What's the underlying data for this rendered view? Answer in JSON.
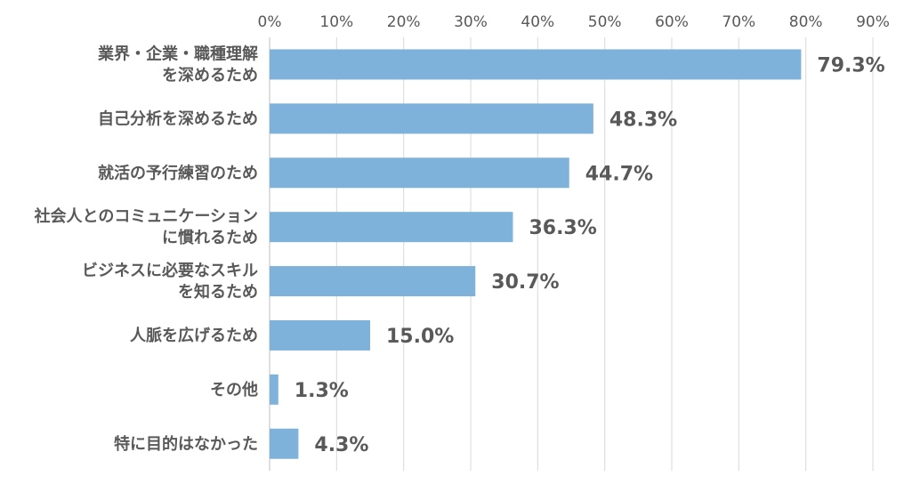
{
  "chart_data": {
    "type": "bar",
    "orientation": "horizontal",
    "categories": [
      "業界・企業・職種理解\nを深めるため",
      "自己分析を深めるため",
      "就活の予行練習のため",
      "社会人とのコミュニケーション\nに慣れるため",
      "ビジネスに必要なスキル\nを知るため",
      "人脈を広げるため",
      "その他",
      "特に目的はなかった"
    ],
    "values": [
      79.3,
      48.3,
      44.7,
      36.3,
      30.7,
      15.0,
      1.3,
      4.3
    ],
    "data_labels": [
      "79.3%",
      "48.3%",
      "44.7%",
      "36.3%",
      "30.7%",
      "15.0%",
      "1.3%",
      "4.3%"
    ],
    "xlim": [
      0,
      90
    ],
    "x_ticks": [
      "0%",
      "10%",
      "20%",
      "30%",
      "40%",
      "50%",
      "60%",
      "70%",
      "80%",
      "90%"
    ],
    "x_axis_position": "top",
    "grid": true,
    "title": "",
    "xlabel": "",
    "ylabel": "",
    "colors": {
      "bar": "#7FB2DA",
      "grid": "#D9D9D9",
      "text": "#595959"
    }
  }
}
